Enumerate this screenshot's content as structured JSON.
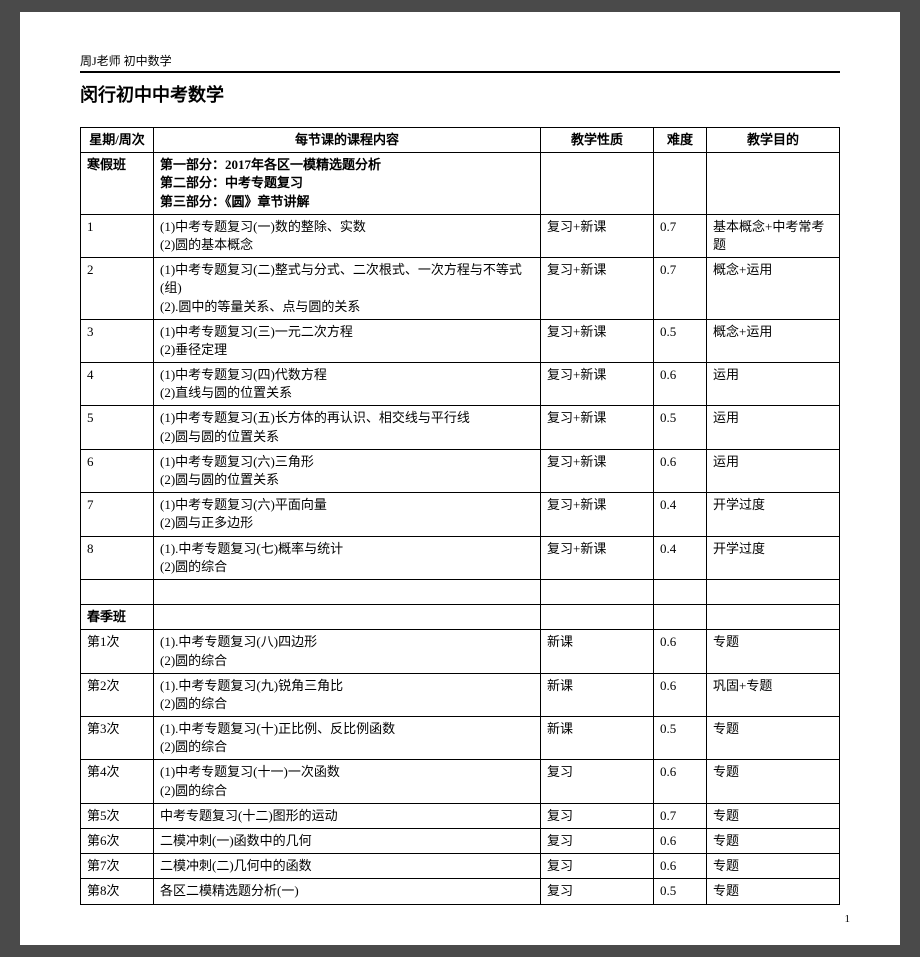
{
  "header": "周J老师 初中数学",
  "title": "闵行初中中考数学",
  "columns": [
    "星期/周次",
    "每节课的课程内容",
    "教学性质",
    "难度",
    "教学目的"
  ],
  "intro": {
    "label": "寒假班",
    "content": "第一部分：2017年各区一模精选题分析\n第二部分：中考专题复习\n第三部分：《圆》章节讲解"
  },
  "rows": [
    {
      "c1": "1",
      "c2": "(1)中考专题复习(一)数的整除、实数\n(2)圆的基本概念",
      "c3": "复习+新课",
      "c4": "0.7",
      "c5": "基本概念+中考常考题"
    },
    {
      "c1": "2",
      "c2": "(1)中考专题复习(二)整式与分式、二次根式、一次方程与不等式(组)\n(2).圆中的等量关系、点与圆的关系",
      "c3": "复习+新课",
      "c4": "0.7",
      "c5": "概念+运用"
    },
    {
      "c1": "3",
      "c2": "(1)中考专题复习(三)一元二次方程\n(2)垂径定理",
      "c3": "复习+新课",
      "c4": "0.5",
      "c5": "概念+运用"
    },
    {
      "c1": "4",
      "c2": "(1)中考专题复习(四)代数方程\n(2)直线与圆的位置关系",
      "c3": "复习+新课",
      "c4": "0.6",
      "c5": "运用"
    },
    {
      "c1": "5",
      "c2": "(1)中考专题复习(五)长方体的再认识、相交线与平行线\n(2)圆与圆的位置关系",
      "c3": "复习+新课",
      "c4": "0.5",
      "c5": "运用"
    },
    {
      "c1": "6",
      "c2": "(1)中考专题复习(六)三角形\n(2)圆与圆的位置关系",
      "c3": "复习+新课",
      "c4": "0.6",
      "c5": "运用"
    },
    {
      "c1": "7",
      "c2": "(1)中考专题复习(六)平面向量\n(2)圆与正多边形",
      "c3": "复习+新课",
      "c4": "0.4",
      "c5": "开学过度"
    },
    {
      "c1": "8",
      "c2": "(1).中考专题复习(七)概率与统计\n(2)圆的综合",
      "c3": "复习+新课",
      "c4": "0.4",
      "c5": "开学过度"
    }
  ],
  "spring_label": "春季班",
  "spring_rows": [
    {
      "c1": "第1次",
      "c2": "(1).中考专题复习(八)四边形\n(2)圆的综合",
      "c3": "新课",
      "c4": "0.6",
      "c5": "专题"
    },
    {
      "c1": "第2次",
      "c2": "(1).中考专题复习(九)锐角三角比\n(2)圆的综合",
      "c3": "新课",
      "c4": "0.6",
      "c5": "巩固+专题"
    },
    {
      "c1": "第3次",
      "c2": "(1).中考专题复习(十)正比例、反比例函数\n(2)圆的综合",
      "c3": "新课",
      "c4": "0.5",
      "c5": "专题"
    },
    {
      "c1": "第4次",
      "c2": "(1)中考专题复习(十一)一次函数\n(2)圆的综合",
      "c3": "复习",
      "c4": "0.6",
      "c5": "专题"
    },
    {
      "c1": "第5次",
      "c2": "中考专题复习(十二)图形的运动",
      "c3": "复习",
      "c4": "0.7",
      "c5": "专题"
    },
    {
      "c1": "第6次",
      "c2": "二模冲刺(一)函数中的几何",
      "c3": "复习",
      "c4": "0.6",
      "c5": "专题"
    },
    {
      "c1": "第7次",
      "c2": "二模冲刺(二)几何中的函数",
      "c3": "复习",
      "c4": "0.6",
      "c5": "专题"
    },
    {
      "c1": "第8次",
      "c2": "各区二模精选题分析(一)",
      "c3": "复习",
      "c4": "0.5",
      "c5": "专题"
    }
  ],
  "page_num": "1"
}
